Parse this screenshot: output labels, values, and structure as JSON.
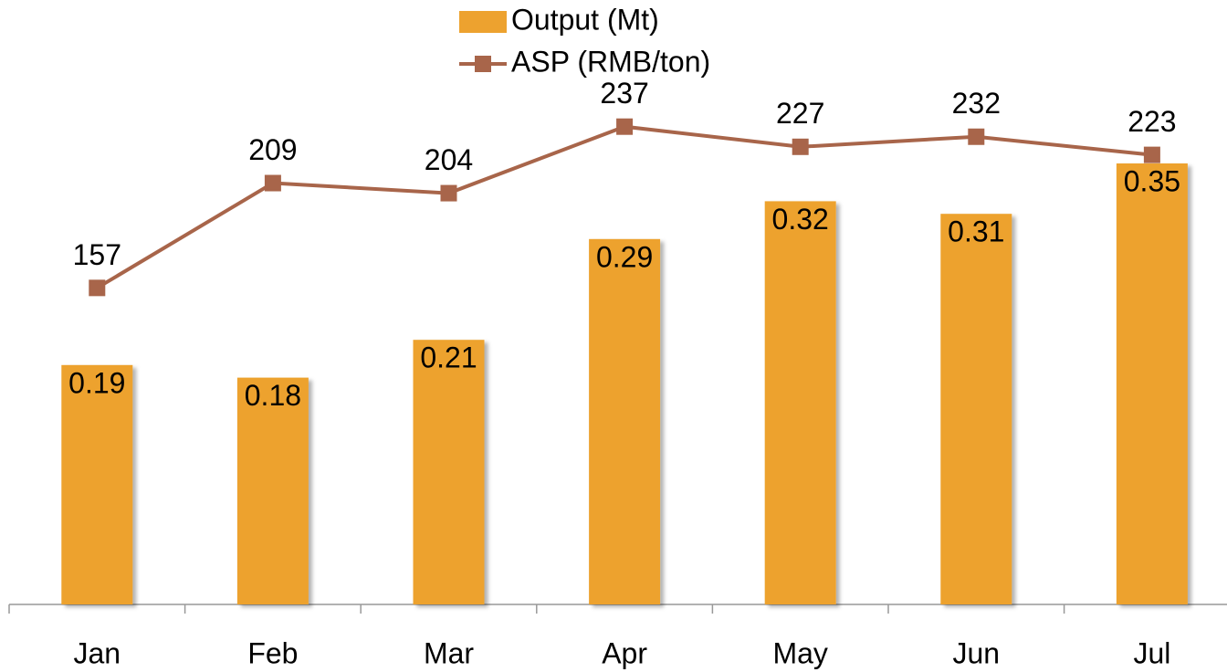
{
  "chart_data": {
    "type": "bar-line",
    "categories": [
      "Jan",
      "Feb",
      "Mar",
      "Apr",
      "May",
      "Jun",
      "Jul"
    ],
    "series": [
      {
        "name": "Output (Mt)",
        "type": "bar",
        "color": "#eda22f",
        "values": [
          0.19,
          0.18,
          0.21,
          0.29,
          0.32,
          0.31,
          0.35
        ]
      },
      {
        "name": "ASP (RMB/ton)",
        "type": "line",
        "axis": "y2",
        "color": "#a8654a",
        "values": [
          157,
          209,
          204,
          237,
          227,
          232,
          223
        ]
      }
    ],
    "ylim": [
      0,
      0.4
    ],
    "y2lim": [
      0,
      250
    ]
  }
}
